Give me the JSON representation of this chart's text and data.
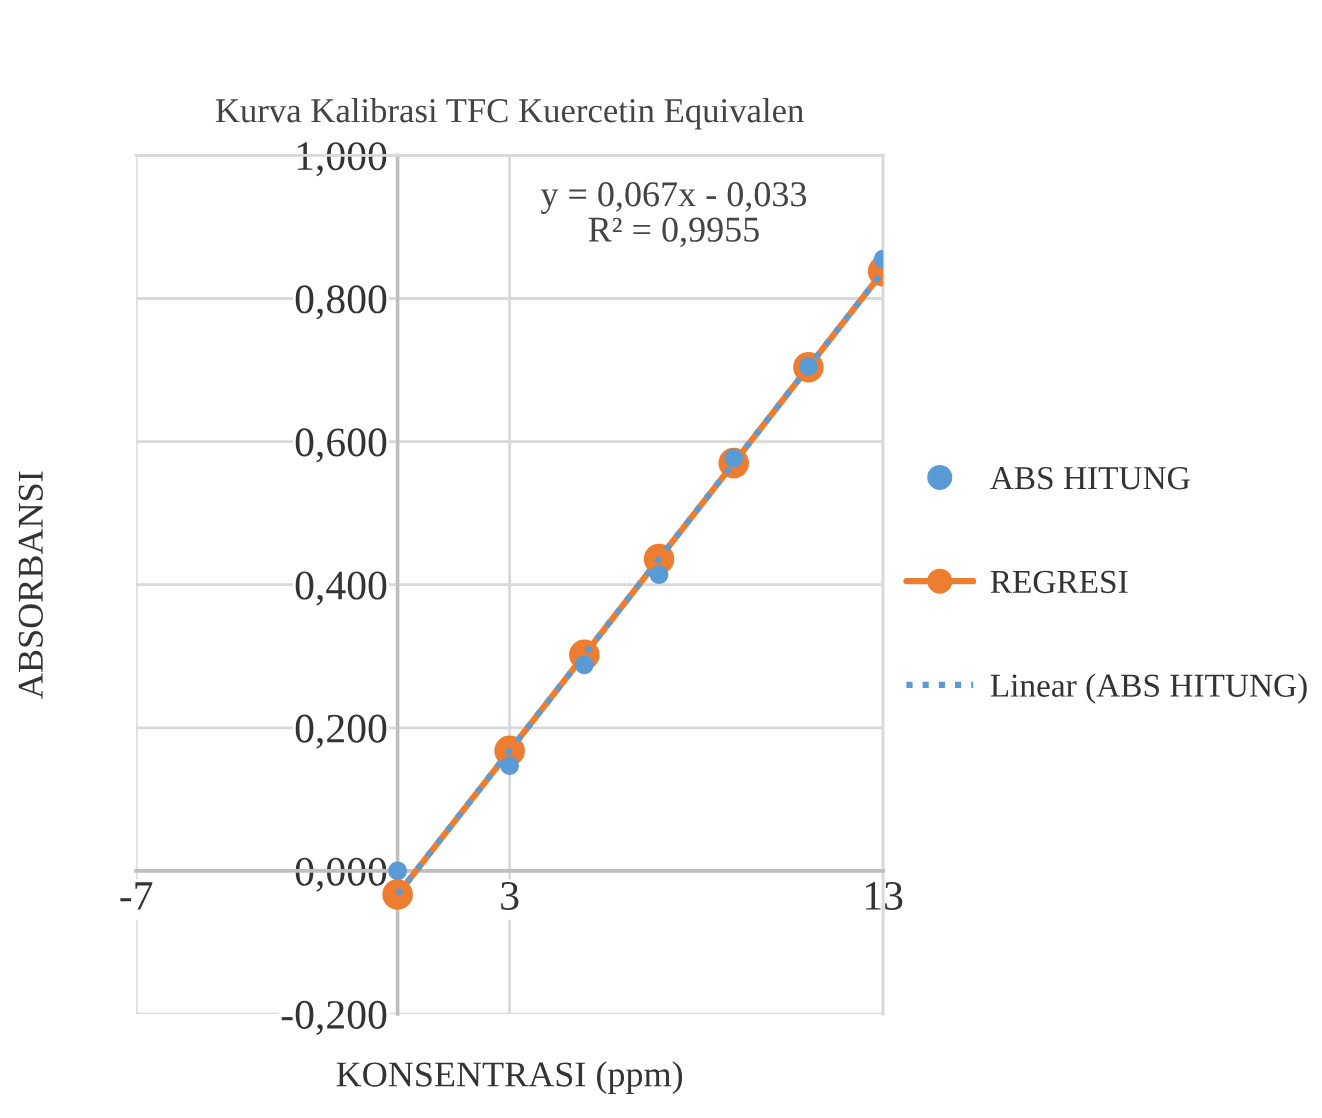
{
  "chart_data": {
    "type": "scatter",
    "title": "Kurva Kalibrasi TFC Kuercetin Equivalen",
    "xlabel": "KONSENTRASI (ppm)",
    "ylabel": "ABSORBANSI",
    "annotations": [
      "y = 0,067x - 0,033\nR² = 0,9955"
    ],
    "series": [
      {
        "name": "ABS HITUNG",
        "color": "#5b9bd5",
        "marker": "circle",
        "x": [
          0,
          3,
          5,
          7,
          9,
          11,
          13
        ],
        "values": [
          0.0,
          0.147,
          0.288,
          0.414,
          0.577,
          0.705,
          0.855
        ]
      },
      {
        "name": "REGRESI",
        "type": "line",
        "color": "#ed7d31",
        "marker": "circle",
        "line_style": "solid",
        "x": [
          0,
          3,
          5,
          7,
          9,
          11,
          13
        ],
        "values": [
          -0.033,
          0.168,
          0.302,
          0.436,
          0.57,
          0.704,
          0.838
        ]
      },
      {
        "name": "Linear (ABS HITUNG)",
        "type": "line",
        "color": "#5b9bd5",
        "marker": "none",
        "line_style": "dotted",
        "x": [
          0,
          13
        ],
        "values": [
          -0.033,
          0.838
        ]
      }
    ],
    "xlim": [
      -7,
      13
    ],
    "xticks": [
      -7,
      3,
      13
    ],
    "ylim": [
      -0.2,
      1.0
    ],
    "yticks": [
      {
        "value": -0.2,
        "label": "-0,200"
      },
      {
        "value": 0,
        "label": "0,000"
      },
      {
        "value": 0.2,
        "label": "0,200"
      },
      {
        "value": 0.4,
        "label": "0,400"
      },
      {
        "value": 0.6,
        "label": "0,600"
      },
      {
        "value": 0.8,
        "label": "0,800"
      },
      {
        "value": 1.0,
        "label": "1,000"
      }
    ],
    "grid": true,
    "legend": "right"
  }
}
